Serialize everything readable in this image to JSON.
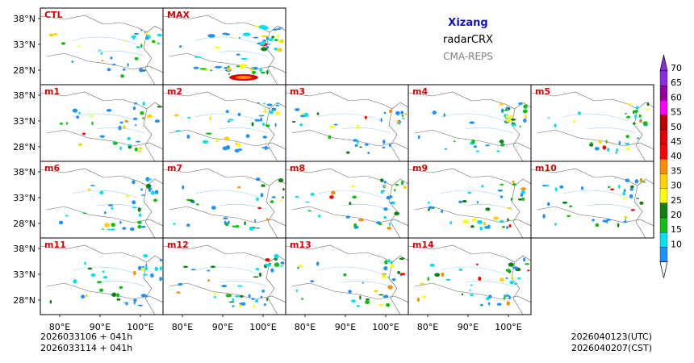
{
  "header": {
    "region": "Xizang",
    "product": "radarCRX",
    "model": "CMA-REPS",
    "region_color": "#1010cc",
    "model_color": "#808080"
  },
  "panels": [
    {
      "label": "CTL",
      "seed": 3,
      "density": 0.55
    },
    {
      "label": "MAX",
      "seed": 7,
      "density": 1.0
    },
    {
      "label": "m1",
      "seed": 11,
      "density": 0.6
    },
    {
      "label": "m2",
      "seed": 13,
      "density": 0.7
    },
    {
      "label": "m3",
      "seed": 17,
      "density": 0.55
    },
    {
      "label": "m4",
      "seed": 19,
      "density": 0.6
    },
    {
      "label": "m5",
      "seed": 23,
      "density": 0.55
    },
    {
      "label": "m6",
      "seed": 29,
      "density": 0.6
    },
    {
      "label": "m7",
      "seed": 31,
      "density": 0.55
    },
    {
      "label": "m8",
      "seed": 37,
      "density": 0.6
    },
    {
      "label": "m9",
      "seed": 41,
      "density": 0.65
    },
    {
      "label": "m10",
      "seed": 43,
      "density": 0.6
    },
    {
      "label": "m11",
      "seed": 47,
      "density": 0.6
    },
    {
      "label": "m12",
      "seed": 53,
      "density": 0.7
    },
    {
      "label": "m13",
      "seed": 59,
      "density": 0.6
    },
    {
      "label": "m14",
      "seed": 61,
      "density": 0.65
    }
  ],
  "panel_label_color": "#e00000",
  "axes": {
    "lat_ticks": [
      "38°N",
      "33°N",
      "28°N"
    ],
    "lon_ticks": [
      "80°E",
      "90°E",
      "100°E"
    ]
  },
  "colorbar": {
    "levels": [
      "70",
      "65",
      "60",
      "55",
      "50",
      "45",
      "40",
      "35",
      "30",
      "25",
      "20",
      "15",
      "10"
    ],
    "colors": [
      "#8a2be2",
      "#9400a0",
      "#ff00ff",
      "#c00000",
      "#e00000",
      "#ff0000",
      "#ff8c00",
      "#ffd200",
      "#ffff00",
      "#108010",
      "#10c010",
      "#00e0f0",
      "#1e90ff"
    ]
  },
  "footer": {
    "init_utc": "2026033106  +  041h",
    "init_cst": "2026033114  +  041h",
    "valid_utc": "2026040123(UTC)",
    "valid_cst": "2026040207(CST)"
  }
}
